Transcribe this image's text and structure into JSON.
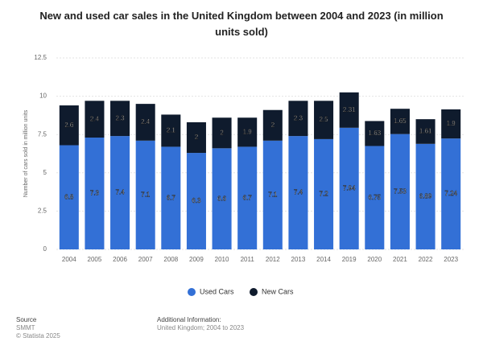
{
  "chart_data": {
    "type": "stacked-bar",
    "title": "New and used car sales in the United Kingdom between 2004 and 2023 (in million units sold)",
    "y_label": "Number of cars sold in million units",
    "categories": [
      "2004",
      "2005",
      "2006",
      "2007",
      "2008",
      "2009",
      "2010",
      "2011",
      "2012",
      "2013",
      "2014",
      "2019",
      "2020",
      "2021",
      "2022",
      "2023"
    ],
    "series": [
      {
        "name": "Used Cars",
        "color": "#3370d6",
        "values": [
          6.8,
          7.3,
          7.4,
          7.1,
          6.7,
          6.3,
          6.6,
          6.7,
          7.1,
          7.4,
          7.2,
          7.94,
          6.75,
          7.53,
          6.89,
          7.24
        ]
      },
      {
        "name": "New Cars",
        "color": "#0f1b2d",
        "values": [
          2.6,
          2.4,
          2.3,
          2.4,
          2.1,
          2,
          2,
          1.9,
          2,
          2.3,
          2.5,
          2.31,
          1.63,
          1.65,
          1.61,
          1.9
        ]
      }
    ],
    "ylim": [
      0,
      12.5
    ],
    "yticks": [
      0,
      2.5,
      5,
      7.5,
      10,
      12.5
    ],
    "grid": true,
    "source_heading": "Source",
    "source": "SMMT",
    "copyright": "© Statista 2025",
    "info_heading": "Additional Information:",
    "info": "United Kingdom; 2004 to 2023"
  }
}
